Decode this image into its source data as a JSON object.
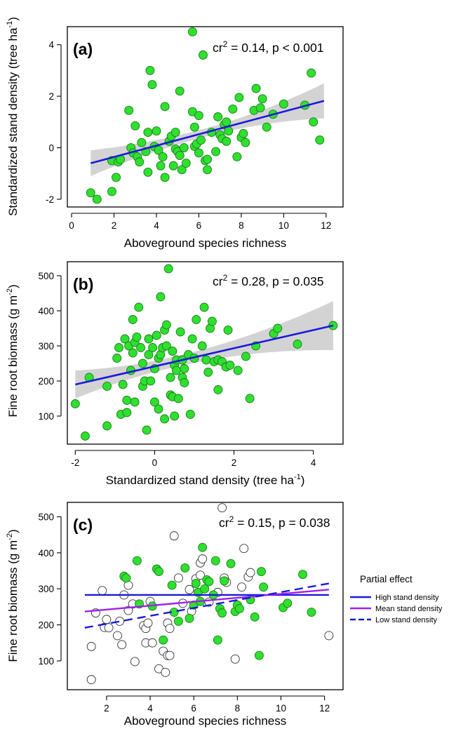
{
  "colors": {
    "point_fill": "#2fe02f",
    "point_stroke": "#1a7a1a",
    "open_point_stroke": "#333333",
    "fit_line": "#1a1adb",
    "ci_band": "#d3d3d3",
    "high_line": "#1a1adb",
    "mean_line": "#a020f0",
    "low_line": "#1a1adb"
  },
  "chart_data": [
    {
      "type": "scatter",
      "panel": "(a)",
      "stat": {
        "prefix": "cr",
        "sup": "2",
        "rest": " = 0.14,  p < 0.001"
      },
      "xlabel": "Aboveground species richness",
      "ylabel": {
        "text": "Standardized stand density (tree ha",
        "sup": "-1",
        "close": ")"
      },
      "xlim": [
        -0.2,
        12.8
      ],
      "ylim": [
        -2.3,
        4.7
      ],
      "xticks": [
        0,
        2,
        4,
        6,
        8,
        10,
        12
      ],
      "yticks": [
        -2,
        0,
        2,
        4
      ],
      "fit": {
        "x": [
          0.9,
          11.9
        ],
        "y": [
          -0.6,
          1.82
        ],
        "ci_halfwidth_ends": [
          0.5,
          0.68
        ],
        "ci_halfwidth_mid": 0.16,
        "x_mid": 6.2
      },
      "points": [
        [
          0.9,
          -1.75
        ],
        [
          1.2,
          -2.0
        ],
        [
          1.9,
          -1.7
        ],
        [
          1.9,
          -0.5
        ],
        [
          2.1,
          -1.15
        ],
        [
          2.2,
          -0.55
        ],
        [
          2.3,
          -0.45
        ],
        [
          2.7,
          1.45
        ],
        [
          2.8,
          0.0
        ],
        [
          2.9,
          -0.2
        ],
        [
          3.1,
          -0.35
        ],
        [
          3.0,
          0.85
        ],
        [
          3.2,
          -0.55
        ],
        [
          3.3,
          0.2
        ],
        [
          3.5,
          -0.15
        ],
        [
          3.6,
          0.6
        ],
        [
          3.6,
          -0.95
        ],
        [
          3.7,
          3.0
        ],
        [
          3.8,
          2.45
        ],
        [
          3.9,
          0.05
        ],
        [
          4.0,
          0.65
        ],
        [
          4.1,
          -0.1
        ],
        [
          4.2,
          -0.7
        ],
        [
          4.3,
          -0.35
        ],
        [
          4.4,
          -1.15
        ],
        [
          4.4,
          1.6
        ],
        [
          4.6,
          0.25
        ],
        [
          4.7,
          0.45
        ],
        [
          4.8,
          -0.7
        ],
        [
          4.9,
          -0.05
        ],
        [
          4.9,
          0.6
        ],
        [
          5.0,
          -0.15
        ],
        [
          5.1,
          -0.3
        ],
        [
          5.1,
          2.2
        ],
        [
          5.2,
          -0.85
        ],
        [
          5.3,
          0.0
        ],
        [
          5.4,
          -0.6
        ],
        [
          5.7,
          1.4
        ],
        [
          5.8,
          0.05
        ],
        [
          5.8,
          0.8
        ],
        [
          5.9,
          0.15
        ],
        [
          6.0,
          1.25
        ],
        [
          6.0,
          -0.2
        ],
        [
          6.1,
          0.3
        ],
        [
          6.2,
          3.6
        ],
        [
          6.3,
          -0.5
        ],
        [
          6.4,
          -0.85
        ],
        [
          6.4,
          -0.45
        ],
        [
          6.6,
          0.6
        ],
        [
          6.8,
          -0.15
        ],
        [
          6.9,
          1.2
        ],
        [
          7.0,
          0.5
        ],
        [
          7.1,
          0.35
        ],
        [
          7.2,
          0.9
        ],
        [
          7.3,
          0.25
        ],
        [
          7.3,
          1.0
        ],
        [
          7.4,
          0.65
        ],
        [
          7.6,
          1.5
        ],
        [
          7.8,
          -0.35
        ],
        [
          7.9,
          1.95
        ],
        [
          8.0,
          0.4
        ],
        [
          8.1,
          0.55
        ],
        [
          8.2,
          0.2
        ],
        [
          8.6,
          1.45
        ],
        [
          8.7,
          2.3
        ],
        [
          8.9,
          1.55
        ],
        [
          9.0,
          1.9
        ],
        [
          9.2,
          0.8
        ],
        [
          9.5,
          1.3
        ],
        [
          10.0,
          1.7
        ],
        [
          11.0,
          1.65
        ],
        [
          11.3,
          2.9
        ],
        [
          11.4,
          1.0
        ],
        [
          11.7,
          0.3
        ],
        [
          5.7,
          4.5
        ]
      ]
    },
    {
      "type": "scatter",
      "panel": "(b)",
      "stat": {
        "prefix": "cr",
        "sup": "2",
        "rest": " = 0.28,  p = 0.035"
      },
      "xlabel": {
        "text": "Standardized stand density (tree ha",
        "sup": "-1",
        "close": ")"
      },
      "ylabel": {
        "text": "Fine root biomass (g m",
        "sup": "-2",
        "close": ")"
      },
      "xlim": [
        -2.2,
        4.75
      ],
      "ylim": [
        20,
        540
      ],
      "xticks": [
        -2,
        0,
        2,
        4
      ],
      "yticks": [
        100,
        200,
        300,
        400,
        500
      ],
      "fit": {
        "x": [
          -2.0,
          4.5
        ],
        "y": [
          190,
          358
        ],
        "ci_halfwidth_ends": [
          40,
          70
        ],
        "ci_halfwidth_mid": 15,
        "x_mid": 0.5
      },
      "points": [
        [
          -2.0,
          135
        ],
        [
          -1.75,
          43
        ],
        [
          -1.65,
          210
        ],
        [
          -1.2,
          185
        ],
        [
          -1.2,
          72
        ],
        [
          -0.95,
          265
        ],
        [
          -0.9,
          295
        ],
        [
          -0.85,
          105
        ],
        [
          -0.8,
          190
        ],
        [
          -0.75,
          320
        ],
        [
          -0.7,
          145
        ],
        [
          -0.7,
          110
        ],
        [
          -0.65,
          300
        ],
        [
          -0.6,
          230
        ],
        [
          -0.55,
          375
        ],
        [
          -0.55,
          280
        ],
        [
          -0.5,
          140
        ],
        [
          -0.5,
          310
        ],
        [
          -0.45,
          325
        ],
        [
          -0.4,
          410
        ],
        [
          -0.35,
          295
        ],
        [
          -0.3,
          250
        ],
        [
          -0.3,
          185
        ],
        [
          -0.25,
          200
        ],
        [
          -0.2,
          60
        ],
        [
          -0.15,
          320
        ],
        [
          -0.15,
          275
        ],
        [
          -0.1,
          200
        ],
        [
          -0.05,
          295
        ],
        [
          0.0,
          140
        ],
        [
          0.0,
          235
        ],
        [
          0.05,
          330
        ],
        [
          0.1,
          265
        ],
        [
          0.1,
          120
        ],
        [
          0.15,
          440
        ],
        [
          0.15,
          275
        ],
        [
          0.2,
          295
        ],
        [
          0.25,
          92
        ],
        [
          0.25,
          345
        ],
        [
          0.3,
          360
        ],
        [
          0.3,
          300
        ],
        [
          0.35,
          520
        ],
        [
          0.4,
          210
        ],
        [
          0.4,
          160
        ],
        [
          0.45,
          155
        ],
        [
          0.45,
          285
        ],
        [
          0.5,
          100
        ],
        [
          0.5,
          245
        ],
        [
          0.55,
          230
        ],
        [
          0.55,
          260
        ],
        [
          0.6,
          150
        ],
        [
          0.65,
          340
        ],
        [
          0.7,
          210
        ],
        [
          0.7,
          260
        ],
        [
          0.75,
          235
        ],
        [
          0.75,
          195
        ],
        [
          0.85,
          275
        ],
        [
          0.9,
          105
        ],
        [
          0.95,
          320
        ],
        [
          1.0,
          265
        ],
        [
          1.05,
          375
        ],
        [
          1.2,
          300
        ],
        [
          1.25,
          410
        ],
        [
          1.3,
          260
        ],
        [
          1.35,
          225
        ],
        [
          1.4,
          350
        ],
        [
          1.45,
          370
        ],
        [
          1.5,
          255
        ],
        [
          1.6,
          175
        ],
        [
          1.6,
          260
        ],
        [
          1.7,
          255
        ],
        [
          1.8,
          240
        ],
        [
          1.85,
          345
        ],
        [
          1.9,
          245
        ],
        [
          2.1,
          230
        ],
        [
          2.3,
          270
        ],
        [
          2.4,
          150
        ],
        [
          2.55,
          300
        ],
        [
          3.0,
          335
        ],
        [
          3.1,
          350
        ],
        [
          3.6,
          305
        ],
        [
          4.5,
          358
        ]
      ]
    },
    {
      "type": "scatter",
      "panel": "(c)",
      "stat": {
        "prefix": "cr",
        "sup": "2",
        "rest": " = 0.15,  p = 0.038"
      },
      "xlabel": "Aboveground species richness",
      "ylabel": {
        "text": "Fine root biomass (g m",
        "sup": "-2",
        "close": ")"
      },
      "xlim": [
        0.2,
        12.85
      ],
      "ylim": [
        20,
        540
      ],
      "xticks": [
        2,
        4,
        6,
        8,
        10,
        12
      ],
      "yticks": [
        100,
        200,
        300,
        400,
        500
      ],
      "legend": {
        "title": "Partial effect",
        "placement": "right",
        "entries": [
          "High stand density",
          "Mean stand density",
          "Low stand density"
        ]
      },
      "series": [
        {
          "name": "High stand density",
          "style": "solid",
          "x": [
            1.0,
            12.2
          ],
          "y": [
            283,
            283
          ]
        },
        {
          "name": "Mean stand density",
          "style": "solid",
          "x": [
            1.0,
            12.2
          ],
          "y": [
            237,
            298
          ]
        },
        {
          "name": "Low stand density",
          "style": "dashed",
          "x": [
            1.0,
            12.2
          ],
          "y": [
            192,
            315
          ]
        }
      ],
      "filled_points": [
        [
          2.8,
          335
        ],
        [
          2.9,
          330
        ],
        [
          3.4,
          378
        ],
        [
          3.5,
          258
        ],
        [
          4.1,
          252
        ],
        [
          4.3,
          355
        ],
        [
          4.4,
          348
        ],
        [
          4.6,
          158
        ],
        [
          5.0,
          310
        ],
        [
          5.1,
          235
        ],
        [
          5.3,
          210
        ],
        [
          5.6,
          358
        ],
        [
          5.8,
          218
        ],
        [
          6.0,
          255
        ],
        [
          6.1,
          315
        ],
        [
          6.2,
          290
        ],
        [
          6.3,
          265
        ],
        [
          6.4,
          415
        ],
        [
          6.5,
          300
        ],
        [
          6.6,
          325
        ],
        [
          6.7,
          320
        ],
        [
          6.9,
          283
        ],
        [
          7.0,
          378
        ],
        [
          7.1,
          158
        ],
        [
          7.2,
          245
        ],
        [
          7.3,
          233
        ],
        [
          7.4,
          322
        ],
        [
          7.7,
          370
        ],
        [
          7.9,
          237
        ],
        [
          8.0,
          255
        ],
        [
          8.1,
          245
        ],
        [
          8.6,
          270
        ],
        [
          8.8,
          222
        ],
        [
          9.0,
          115
        ],
        [
          9.1,
          348
        ],
        [
          9.2,
          305
        ],
        [
          10.1,
          248
        ],
        [
          10.3,
          260
        ],
        [
          11.0,
          340
        ],
        [
          11.4,
          235
        ]
      ],
      "open_points": [
        [
          1.3,
          140
        ],
        [
          1.3,
          48
        ],
        [
          1.5,
          233
        ],
        [
          1.8,
          295
        ],
        [
          1.9,
          193
        ],
        [
          2.0,
          215
        ],
        [
          2.1,
          192
        ],
        [
          2.5,
          170
        ],
        [
          2.6,
          210
        ],
        [
          2.7,
          145
        ],
        [
          2.8,
          283
        ],
        [
          3.0,
          310
        ],
        [
          3.0,
          240
        ],
        [
          3.2,
          258
        ],
        [
          3.3,
          98
        ],
        [
          3.7,
          198
        ],
        [
          3.8,
          150
        ],
        [
          3.8,
          190
        ],
        [
          3.9,
          205
        ],
        [
          4.0,
          265
        ],
        [
          4.1,
          150
        ],
        [
          4.4,
          78
        ],
        [
          4.6,
          127
        ],
        [
          4.7,
          68
        ],
        [
          4.8,
          205
        ],
        [
          4.8,
          115
        ],
        [
          4.9,
          115
        ],
        [
          4.9,
          190
        ],
        [
          5.1,
          447
        ],
        [
          5.3,
          330
        ],
        [
          5.5,
          260
        ],
        [
          5.8,
          298
        ],
        [
          5.9,
          238
        ],
        [
          6.1,
          328
        ],
        [
          6.3,
          372
        ],
        [
          6.3,
          338
        ],
        [
          6.4,
          383
        ],
        [
          6.7,
          263
        ],
        [
          7.1,
          290
        ],
        [
          7.3,
          525
        ],
        [
          7.4,
          330
        ],
        [
          7.5,
          318
        ],
        [
          7.9,
          105
        ],
        [
          8.2,
          305
        ],
        [
          8.3,
          412
        ],
        [
          8.5,
          333
        ],
        [
          8.6,
          345
        ],
        [
          12.2,
          170
        ]
      ]
    }
  ]
}
